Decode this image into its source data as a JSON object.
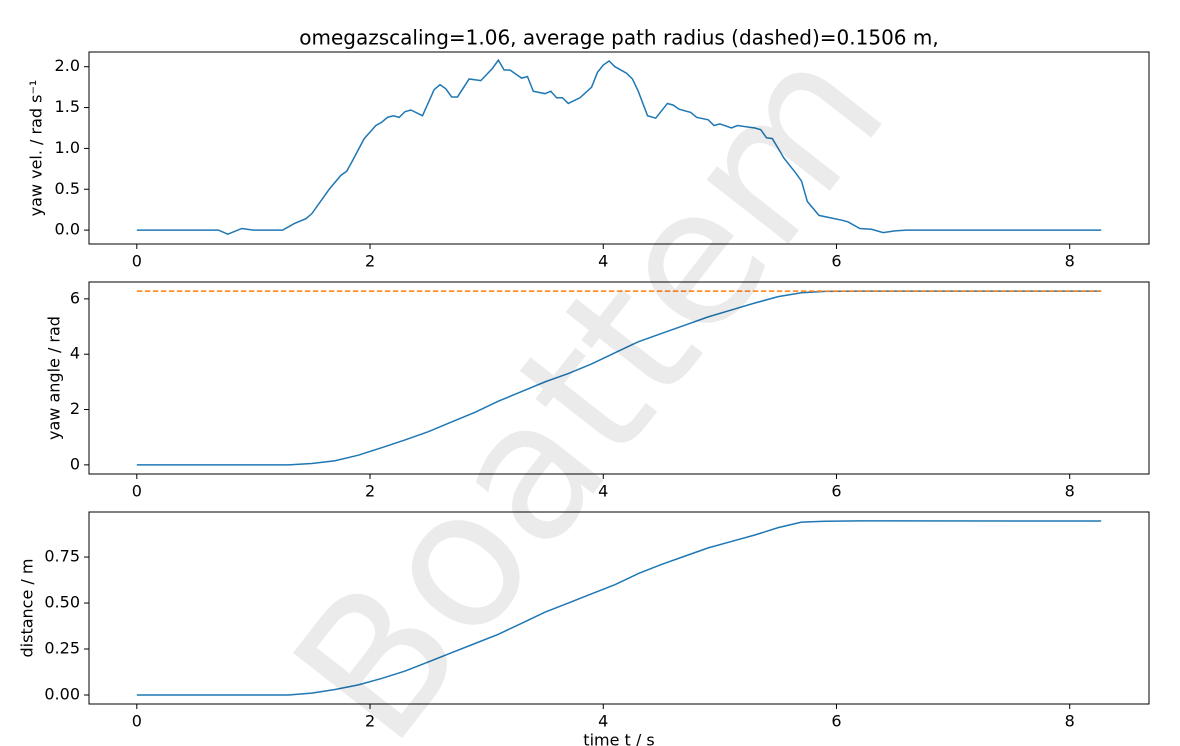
{
  "watermark": "Boattem",
  "chart_data": [
    {
      "type": "line",
      "title": "omegazscaling=1.06, average path radius (dashed)=0.1506 m,",
      "ylabel": "yaw vel. / rad s⁻¹",
      "x": [
        0,
        0.5,
        0.7,
        0.78,
        0.9,
        1.0,
        1.2,
        1.25,
        1.35,
        1.45,
        1.5,
        1.6,
        1.65,
        1.75,
        1.8,
        1.85,
        1.95,
        2.0,
        2.05,
        2.1,
        2.15,
        2.2,
        2.25,
        2.3,
        2.35,
        2.45,
        2.55,
        2.6,
        2.65,
        2.7,
        2.75,
        2.85,
        2.95,
        3.05,
        3.1,
        3.15,
        3.2,
        3.3,
        3.35,
        3.4,
        3.5,
        3.55,
        3.6,
        3.65,
        3.7,
        3.8,
        3.9,
        3.95,
        4.0,
        4.05,
        4.1,
        4.2,
        4.25,
        4.3,
        4.38,
        4.45,
        4.55,
        4.6,
        4.65,
        4.75,
        4.8,
        4.9,
        4.95,
        5.0,
        5.1,
        5.15,
        5.3,
        5.35,
        5.4,
        5.45,
        5.5,
        5.55,
        5.65,
        5.7,
        5.75,
        5.85,
        5.95,
        6.05,
        6.1,
        6.2,
        6.3,
        6.4,
        6.5,
        6.6,
        7.0,
        7.5,
        8.0,
        8.27
      ],
      "series": [
        {
          "name": "yaw vel.",
          "color": "#1f77b4",
          "dashed": false,
          "values": [
            0,
            0,
            0,
            -0.05,
            0.02,
            0,
            0,
            0,
            0.08,
            0.14,
            0.2,
            0.4,
            0.5,
            0.67,
            0.72,
            0.85,
            1.12,
            1.2,
            1.28,
            1.32,
            1.38,
            1.4,
            1.38,
            1.45,
            1.47,
            1.4,
            1.72,
            1.78,
            1.73,
            1.63,
            1.63,
            1.85,
            1.83,
            1.98,
            2.08,
            1.96,
            1.96,
            1.86,
            1.88,
            1.7,
            1.67,
            1.7,
            1.62,
            1.62,
            1.55,
            1.62,
            1.75,
            1.93,
            2.02,
            2.07,
            2.0,
            1.92,
            1.85,
            1.7,
            1.4,
            1.37,
            1.55,
            1.53,
            1.48,
            1.44,
            1.38,
            1.35,
            1.28,
            1.3,
            1.25,
            1.28,
            1.25,
            1.23,
            1.13,
            1.12,
            1.0,
            0.88,
            0.7,
            0.6,
            0.35,
            0.18,
            0.15,
            0.12,
            0.1,
            0.02,
            0.01,
            -0.03,
            -0.01,
            0,
            0,
            0,
            0,
            0
          ]
        }
      ],
      "xlim": [
        -0.41,
        8.68
      ],
      "xticks": [
        0,
        2,
        4,
        6,
        8
      ],
      "ylim": [
        -0.17,
        2.18
      ],
      "yticks": [
        {
          "value": 0,
          "label": "0.0"
        },
        0.5,
        {
          "value": 1,
          "label": "1.0"
        },
        1.5,
        {
          "value": 2,
          "label": "2.0"
        }
      ]
    },
    {
      "type": "line",
      "ylabel": "yaw angle / rad",
      "x": [
        0,
        1.3,
        1.5,
        1.7,
        1.9,
        2.1,
        2.3,
        2.5,
        2.7,
        2.9,
        3.1,
        3.3,
        3.5,
        3.7,
        3.9,
        4.1,
        4.3,
        4.5,
        4.7,
        4.9,
        5.1,
        5.3,
        5.5,
        5.7,
        5.9,
        6.2,
        8.27
      ],
      "series": [
        {
          "name": "yaw angle",
          "color": "#1f77b4",
          "dashed": false,
          "values": [
            0,
            0,
            0.05,
            0.15,
            0.35,
            0.62,
            0.9,
            1.2,
            1.55,
            1.9,
            2.3,
            2.65,
            3.0,
            3.3,
            3.65,
            4.05,
            4.45,
            4.75,
            5.05,
            5.35,
            5.6,
            5.85,
            6.08,
            6.22,
            6.27,
            6.28,
            6.28
          ]
        },
        {
          "name": "2π",
          "color": "#ff7f0e",
          "dashed": true,
          "values": [
            6.28,
            6.28,
            6.28,
            6.28,
            6.28,
            6.28,
            6.28,
            6.28,
            6.28,
            6.28,
            6.28,
            6.28,
            6.28,
            6.28,
            6.28,
            6.28,
            6.28,
            6.28,
            6.28,
            6.28,
            6.28,
            6.28,
            6.28,
            6.28,
            6.28,
            6.28,
            6.28
          ]
        }
      ],
      "xlim": [
        -0.41,
        8.68
      ],
      "xticks": [
        0,
        2,
        4,
        6,
        8
      ],
      "ylim": [
        -0.33,
        6.61
      ],
      "yticks": [
        0,
        2,
        4,
        6
      ]
    },
    {
      "type": "line",
      "ylabel": "distance / m",
      "xlabel": "time t / s",
      "x": [
        0,
        1.3,
        1.5,
        1.7,
        1.9,
        2.1,
        2.3,
        2.5,
        2.7,
        2.9,
        3.1,
        3.3,
        3.5,
        3.7,
        3.9,
        4.1,
        4.3,
        4.5,
        4.7,
        4.9,
        5.1,
        5.3,
        5.5,
        5.7,
        5.9,
        6.2,
        8.27
      ],
      "series": [
        {
          "name": "distance",
          "color": "#1f77b4",
          "dashed": false,
          "values": [
            0,
            0,
            0.01,
            0.03,
            0.055,
            0.09,
            0.13,
            0.18,
            0.23,
            0.28,
            0.33,
            0.39,
            0.45,
            0.5,
            0.55,
            0.6,
            0.66,
            0.71,
            0.755,
            0.8,
            0.835,
            0.87,
            0.91,
            0.94,
            0.945,
            0.947,
            0.946
          ]
        }
      ],
      "xlim": [
        -0.41,
        8.68
      ],
      "xticks": [
        0,
        2,
        4,
        6,
        8
      ],
      "ylim": [
        -0.049,
        0.995
      ],
      "yticks": [
        {
          "value": 0,
          "label": "0.00"
        },
        0.25,
        {
          "value": 0.5,
          "label": "0.50"
        },
        0.75
      ]
    }
  ]
}
